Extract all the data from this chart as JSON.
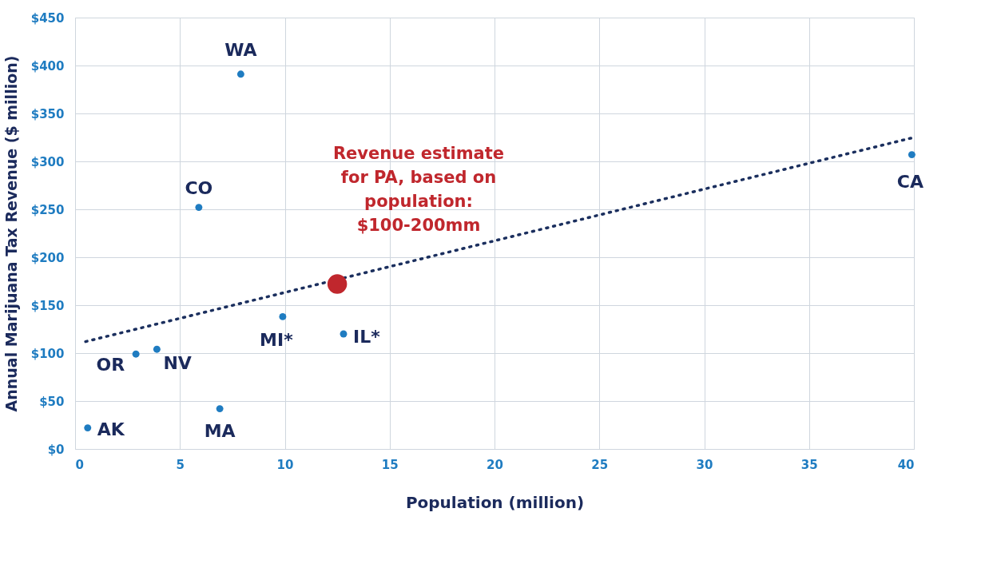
{
  "chart_data": {
    "type": "scatter",
    "xlabel": "Population (million)",
    "ylabel": "Annual Marijuana Tax Revenue ($ million)",
    "xlim": [
      0,
      40
    ],
    "xticks": [
      0,
      5,
      10,
      15,
      20,
      25,
      30,
      35,
      40
    ],
    "ylim": [
      0,
      450
    ],
    "yticks": [
      {
        "value": 0,
        "label": "$0"
      },
      {
        "value": 50,
        "label": "$50"
      },
      {
        "value": 100,
        "label": "$100"
      },
      {
        "value": 150,
        "label": "$150"
      },
      {
        "value": 200,
        "label": "$200"
      },
      {
        "value": 250,
        "label": "$250"
      },
      {
        "value": 300,
        "label": "$300"
      },
      {
        "value": 350,
        "label": "$350"
      },
      {
        "value": 400,
        "label": "$400"
      },
      {
        "value": 450,
        "label": "$450"
      }
    ],
    "grid": true,
    "marker": "circle",
    "series": [
      {
        "type": "line",
        "color": "#1b2f5e",
        "line_style": "dotted",
        "marker": "none",
        "x": [
          0.5,
          40
        ],
        "values": [
          112,
          325
        ]
      },
      {
        "color": "#1f7cc1",
        "x": [
          0.6,
          2.9,
          3.9,
          6.9,
          5.9,
          7.9,
          9.9,
          12.8,
          39.9
        ],
        "values": [
          22,
          99,
          104,
          42,
          252,
          391,
          138,
          120,
          307
        ]
      },
      {
        "color": "#c0272d",
        "x": [
          12.5
        ],
        "values": [
          172
        ]
      }
    ],
    "annotations": [
      {
        "text": "AK",
        "x": 0.6,
        "y": 22
      },
      {
        "text": "OR",
        "x": 2.9,
        "y": 99
      },
      {
        "text": "NV",
        "x": 3.9,
        "y": 104
      },
      {
        "text": "MA",
        "x": 6.9,
        "y": 42
      },
      {
        "text": "CO",
        "x": 5.9,
        "y": 252
      },
      {
        "text": "WA",
        "x": 7.9,
        "y": 391
      },
      {
        "text": "MI*",
        "x": 9.9,
        "y": 138
      },
      {
        "text": "IL*",
        "x": 12.8,
        "y": 120
      },
      {
        "text": "CA",
        "x": 39.9,
        "y": 307
      },
      "Revenue estimate\nfor PA, based on\npopulation:\n$100-200mm"
    ]
  }
}
